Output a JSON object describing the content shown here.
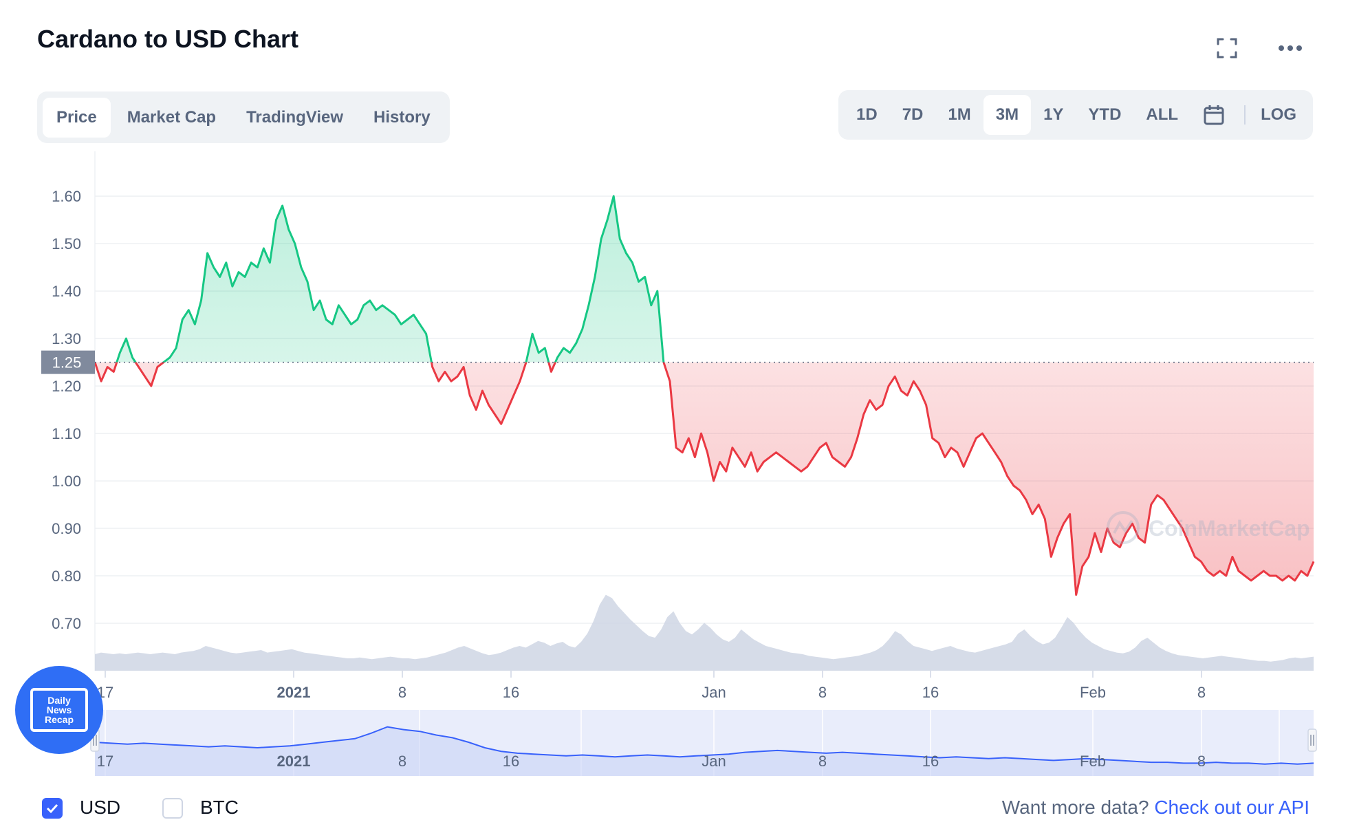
{
  "header": {
    "title": "Cardano to USD Chart"
  },
  "icons": {
    "fullscreen": "fullscreen-icon",
    "more": "more-icon",
    "calendar": "calendar-icon"
  },
  "tabs": [
    "Price",
    "Market Cap",
    "TradingView",
    "History"
  ],
  "active_tab": "Price",
  "ranges": [
    "1D",
    "7D",
    "1M",
    "3M",
    "1Y",
    "YTD",
    "ALL"
  ],
  "active_range": "3M",
  "log_label": "LOG",
  "watermark": "CoinMarketCap",
  "badge": {
    "line1": "Daily",
    "line2": "News",
    "line3": "Recap"
  },
  "currencies": {
    "usd_label": "USD",
    "usd_checked": true,
    "btc_label": "BTC",
    "btc_checked": false
  },
  "footer": {
    "text": "Want more data?",
    "link": "Check out our API"
  },
  "colors": {
    "up": "#16c784",
    "down": "#ea3943",
    "volume": "#cfd6e4",
    "navigator_line": "#3861fb",
    "accent": "#3861fb"
  },
  "chart_data": {
    "type": "line",
    "ylim": [
      0.6,
      1.68
    ],
    "yticks": [
      "0.70",
      "0.80",
      "0.90",
      "1.00",
      "1.10",
      "1.20",
      "1.30",
      "1.40",
      "1.50",
      "1.60"
    ],
    "reference_price": 1.25,
    "reference_label": "1.25",
    "xticks": [
      "17",
      "2021",
      "8",
      "16",
      "Jan",
      "8",
      "16",
      "Feb",
      "8"
    ],
    "navigator_xticks": [
      "17",
      "2021",
      "8",
      "16",
      "Jan",
      "8",
      "16",
      "Feb",
      "8"
    ],
    "price": [
      1.25,
      1.21,
      1.24,
      1.23,
      1.27,
      1.3,
      1.26,
      1.24,
      1.22,
      1.2,
      1.24,
      1.25,
      1.26,
      1.28,
      1.34,
      1.36,
      1.33,
      1.38,
      1.48,
      1.45,
      1.43,
      1.46,
      1.41,
      1.44,
      1.43,
      1.46,
      1.45,
      1.49,
      1.46,
      1.55,
      1.58,
      1.53,
      1.5,
      1.45,
      1.42,
      1.36,
      1.38,
      1.34,
      1.33,
      1.37,
      1.35,
      1.33,
      1.34,
      1.37,
      1.38,
      1.36,
      1.37,
      1.36,
      1.35,
      1.33,
      1.34,
      1.35,
      1.33,
      1.31,
      1.24,
      1.21,
      1.23,
      1.21,
      1.22,
      1.24,
      1.18,
      1.15,
      1.19,
      1.16,
      1.14,
      1.12,
      1.15,
      1.18,
      1.21,
      1.25,
      1.31,
      1.27,
      1.28,
      1.23,
      1.26,
      1.28,
      1.27,
      1.29,
      1.32,
      1.37,
      1.43,
      1.51,
      1.55,
      1.6,
      1.51,
      1.48,
      1.46,
      1.42,
      1.43,
      1.37,
      1.4,
      1.25,
      1.21,
      1.07,
      1.06,
      1.09,
      1.05,
      1.1,
      1.06,
      1.0,
      1.04,
      1.02,
      1.07,
      1.05,
      1.03,
      1.06,
      1.02,
      1.04,
      1.05,
      1.06,
      1.05,
      1.04,
      1.03,
      1.02,
      1.03,
      1.05,
      1.07,
      1.08,
      1.05,
      1.04,
      1.03,
      1.05,
      1.09,
      1.14,
      1.17,
      1.15,
      1.16,
      1.2,
      1.22,
      1.19,
      1.18,
      1.21,
      1.19,
      1.16,
      1.09,
      1.08,
      1.05,
      1.07,
      1.06,
      1.03,
      1.06,
      1.09,
      1.1,
      1.08,
      1.06,
      1.04,
      1.01,
      0.99,
      0.98,
      0.96,
      0.93,
      0.95,
      0.92,
      0.84,
      0.88,
      0.91,
      0.93,
      0.76,
      0.82,
      0.84,
      0.89,
      0.85,
      0.9,
      0.87,
      0.86,
      0.89,
      0.91,
      0.88,
      0.87,
      0.95,
      0.97,
      0.96,
      0.94,
      0.92,
      0.9,
      0.87,
      0.84,
      0.83,
      0.81,
      0.8,
      0.81,
      0.8,
      0.84,
      0.81,
      0.8,
      0.79,
      0.8,
      0.81,
      0.8,
      0.8,
      0.79,
      0.8,
      0.79,
      0.81,
      0.8,
      0.83
    ],
    "volume": [
      0.2,
      0.22,
      0.21,
      0.2,
      0.21,
      0.2,
      0.21,
      0.22,
      0.21,
      0.2,
      0.21,
      0.22,
      0.21,
      0.2,
      0.22,
      0.23,
      0.24,
      0.26,
      0.3,
      0.28,
      0.26,
      0.24,
      0.22,
      0.21,
      0.22,
      0.23,
      0.24,
      0.25,
      0.22,
      0.23,
      0.24,
      0.25,
      0.26,
      0.24,
      0.22,
      0.21,
      0.2,
      0.19,
      0.18,
      0.17,
      0.16,
      0.15,
      0.15,
      0.16,
      0.15,
      0.14,
      0.15,
      0.16,
      0.17,
      0.16,
      0.15,
      0.15,
      0.14,
      0.15,
      0.16,
      0.18,
      0.2,
      0.22,
      0.25,
      0.28,
      0.3,
      0.27,
      0.24,
      0.21,
      0.19,
      0.2,
      0.22,
      0.25,
      0.28,
      0.3,
      0.28,
      0.32,
      0.36,
      0.34,
      0.3,
      0.33,
      0.35,
      0.3,
      0.28,
      0.35,
      0.45,
      0.6,
      0.8,
      0.92,
      0.88,
      0.78,
      0.7,
      0.62,
      0.55,
      0.48,
      0.42,
      0.4,
      0.5,
      0.65,
      0.72,
      0.58,
      0.48,
      0.44,
      0.5,
      0.58,
      0.52,
      0.44,
      0.38,
      0.35,
      0.4,
      0.5,
      0.44,
      0.38,
      0.34,
      0.3,
      0.28,
      0.26,
      0.24,
      0.22,
      0.21,
      0.2,
      0.18,
      0.17,
      0.16,
      0.15,
      0.14,
      0.15,
      0.16,
      0.17,
      0.18,
      0.2,
      0.22,
      0.25,
      0.3,
      0.38,
      0.48,
      0.44,
      0.36,
      0.3,
      0.28,
      0.26,
      0.24,
      0.26,
      0.28,
      0.3,
      0.27,
      0.25,
      0.23,
      0.22,
      0.24,
      0.26,
      0.28,
      0.3,
      0.32,
      0.35,
      0.45,
      0.5,
      0.42,
      0.36,
      0.32,
      0.34,
      0.4,
      0.52,
      0.65,
      0.58,
      0.48,
      0.4,
      0.34,
      0.3,
      0.26,
      0.24,
      0.22,
      0.21,
      0.23,
      0.28,
      0.36,
      0.4,
      0.34,
      0.28,
      0.24,
      0.21,
      0.19,
      0.18,
      0.17,
      0.16,
      0.15,
      0.16,
      0.17,
      0.18,
      0.17,
      0.16,
      0.15,
      0.14,
      0.13,
      0.12,
      0.12,
      0.11,
      0.12,
      0.13,
      0.15,
      0.16,
      0.15,
      0.16,
      0.17
    ],
    "navigator": [
      1.28,
      1.27,
      1.26,
      1.27,
      1.26,
      1.25,
      1.24,
      1.23,
      1.24,
      1.23,
      1.22,
      1.23,
      1.24,
      1.26,
      1.28,
      1.3,
      1.32,
      1.38,
      1.45,
      1.42,
      1.4,
      1.36,
      1.33,
      1.28,
      1.22,
      1.18,
      1.16,
      1.15,
      1.14,
      1.13,
      1.14,
      1.13,
      1.12,
      1.13,
      1.14,
      1.13,
      1.12,
      1.13,
      1.14,
      1.15,
      1.17,
      1.18,
      1.19,
      1.18,
      1.17,
      1.16,
      1.17,
      1.16,
      1.15,
      1.14,
      1.13,
      1.12,
      1.11,
      1.12,
      1.11,
      1.1,
      1.11,
      1.1,
      1.09,
      1.08,
      1.09,
      1.1,
      1.09,
      1.08,
      1.07,
      1.06,
      1.06,
      1.05,
      1.05,
      1.06,
      1.05,
      1.05,
      1.04,
      1.05,
      1.04,
      1.05
    ]
  }
}
